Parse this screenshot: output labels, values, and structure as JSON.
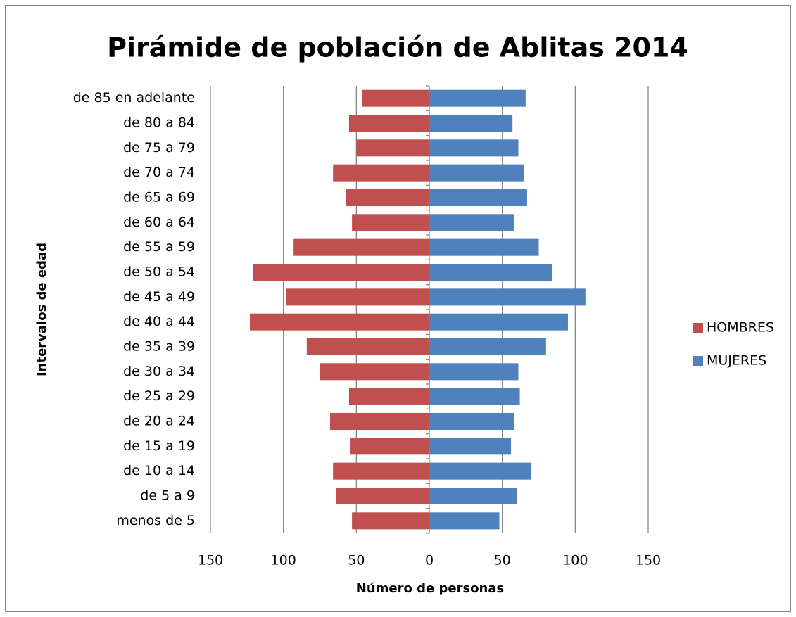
{
  "chart_data": {
    "type": "bar",
    "orientation": "horizontal",
    "title": "Pirámide de población de Ablitas 2014",
    "x_label": "Número de personas",
    "y_label": "Intervalos de edad",
    "categories": [
      "menos de 5",
      "de 5 a 9",
      "de 10 a 14",
      "de 15 a 19",
      "de 20 a 24",
      "de 25 a 29",
      "de 30 a 34",
      "de 35 a 39",
      "de 40 a 44",
      "de 45 a 49",
      "de 50 a 54",
      "de 55 a 59",
      "de 60 a 64",
      "de 65 a 69",
      "de 70 a 74",
      "de 75 a 79",
      "de 80 a 84",
      "de 85 en adelante"
    ],
    "series": [
      {
        "name": "HOMBRES",
        "color": "#c0504d",
        "values": [
          -53,
          -64,
          -66,
          -54,
          -68,
          -55,
          -75,
          -84,
          -123,
          -98,
          -121,
          -93,
          -53,
          -57,
          -66,
          -50,
          -55,
          -46
        ]
      },
      {
        "name": "MUJERES",
        "color": "#4f81bd",
        "values": [
          48,
          60,
          70,
          56,
          58,
          62,
          61,
          80,
          95,
          107,
          84,
          75,
          58,
          67,
          65,
          61,
          57,
          66
        ]
      }
    ],
    "xlim": [
      -150,
      150
    ],
    "xticks": [
      {
        "value": -150,
        "label": "150"
      },
      {
        "value": -100,
        "label": "100"
      },
      {
        "value": -50,
        "label": "50"
      },
      0,
      50,
      100,
      150
    ],
    "grid": true,
    "legend": "right"
  }
}
